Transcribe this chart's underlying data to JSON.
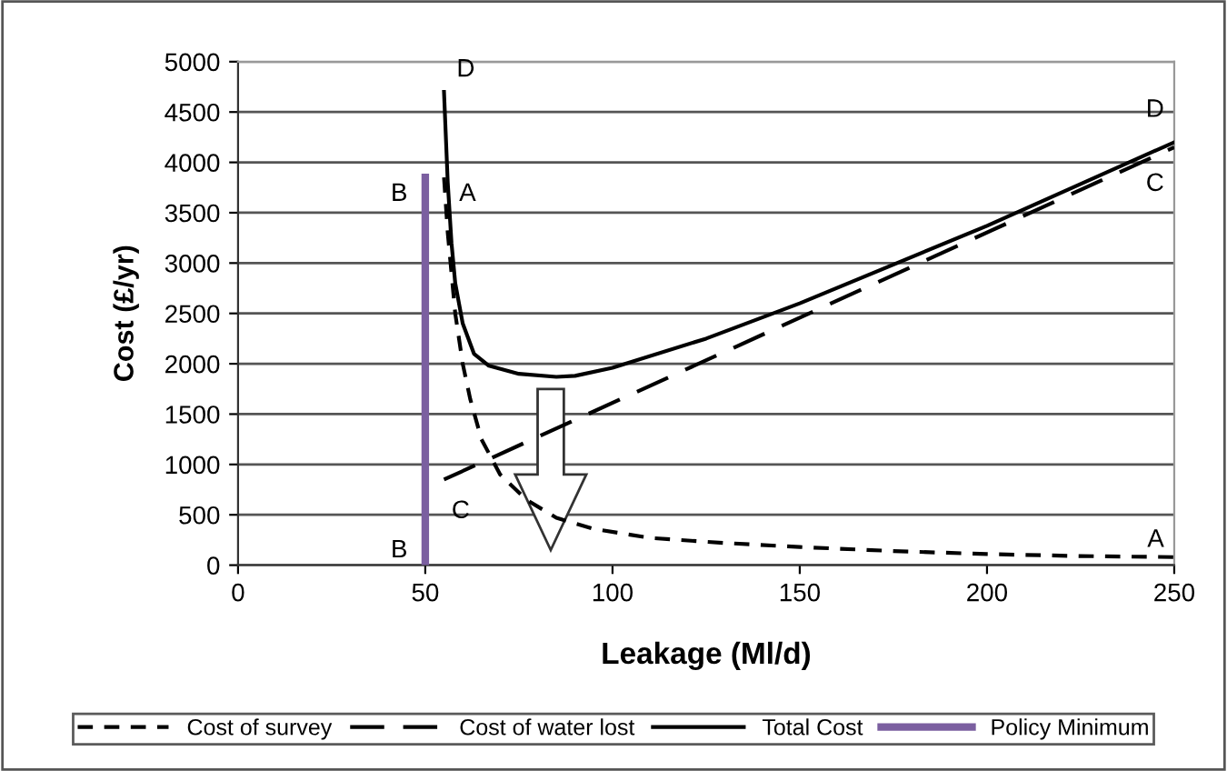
{
  "chart_data": {
    "type": "line",
    "xlabel": "Leakage (Ml/d)",
    "ylabel": "Cost (£/yr)",
    "xlim": [
      0,
      250
    ],
    "xticks": [
      0,
      50,
      100,
      150,
      200,
      250
    ],
    "ylim": [
      0,
      5000
    ],
    "yticks": [
      0,
      500,
      1000,
      1500,
      2000,
      2500,
      3000,
      3500,
      4000,
      4500,
      5000
    ],
    "grid": "y",
    "legend": "bottom",
    "marker": "none",
    "series": [
      {
        "name": "Cost of survey",
        "color": "#000000",
        "line_style": "dotted",
        "x": [
          55,
          56,
          57,
          58,
          60,
          62,
          65,
          70,
          77,
          85,
          95,
          110,
          130,
          150,
          175,
          200,
          225,
          250
        ],
        "values": [
          3850,
          3300,
          2900,
          2500,
          2000,
          1650,
          1250,
          900,
          650,
          470,
          360,
          270,
          220,
          180,
          140,
          110,
          90,
          80
        ]
      },
      {
        "name": "Cost of water lost",
        "color": "#000000",
        "line_style": "dashed",
        "x": [
          55,
          250
        ],
        "values": [
          850,
          4150
        ]
      },
      {
        "name": "Total Cost",
        "color": "#000000",
        "line_style": "solid",
        "x": [
          55,
          56,
          57,
          58,
          60,
          63,
          67,
          75,
          85,
          90,
          100,
          125,
          150,
          200,
          250
        ],
        "values": [
          4700,
          3800,
          3200,
          2800,
          2400,
          2100,
          1980,
          1900,
          1870,
          1880,
          1960,
          2250,
          2600,
          3370,
          4200
        ]
      },
      {
        "name": "Policy Minimum",
        "color": "#7b5fa0",
        "line_style": "solid",
        "x": [
          50,
          50
        ],
        "values": [
          0,
          3850
        ]
      }
    ],
    "annotations": [
      {
        "text": "D",
        "x": 55,
        "y": 4700
      },
      {
        "text": "A",
        "x": 55,
        "y": 3850
      },
      {
        "text": "B",
        "x": 50,
        "y": 3850
      },
      {
        "text": "C",
        "x": 55,
        "y": 850
      },
      {
        "text": "B",
        "x": 50,
        "y": 0
      },
      {
        "text": "D",
        "x": 250,
        "y": 4200
      },
      {
        "text": "C",
        "x": 250,
        "y": 4150
      },
      {
        "text": "A",
        "x": 250,
        "y": 80
      }
    ]
  }
}
